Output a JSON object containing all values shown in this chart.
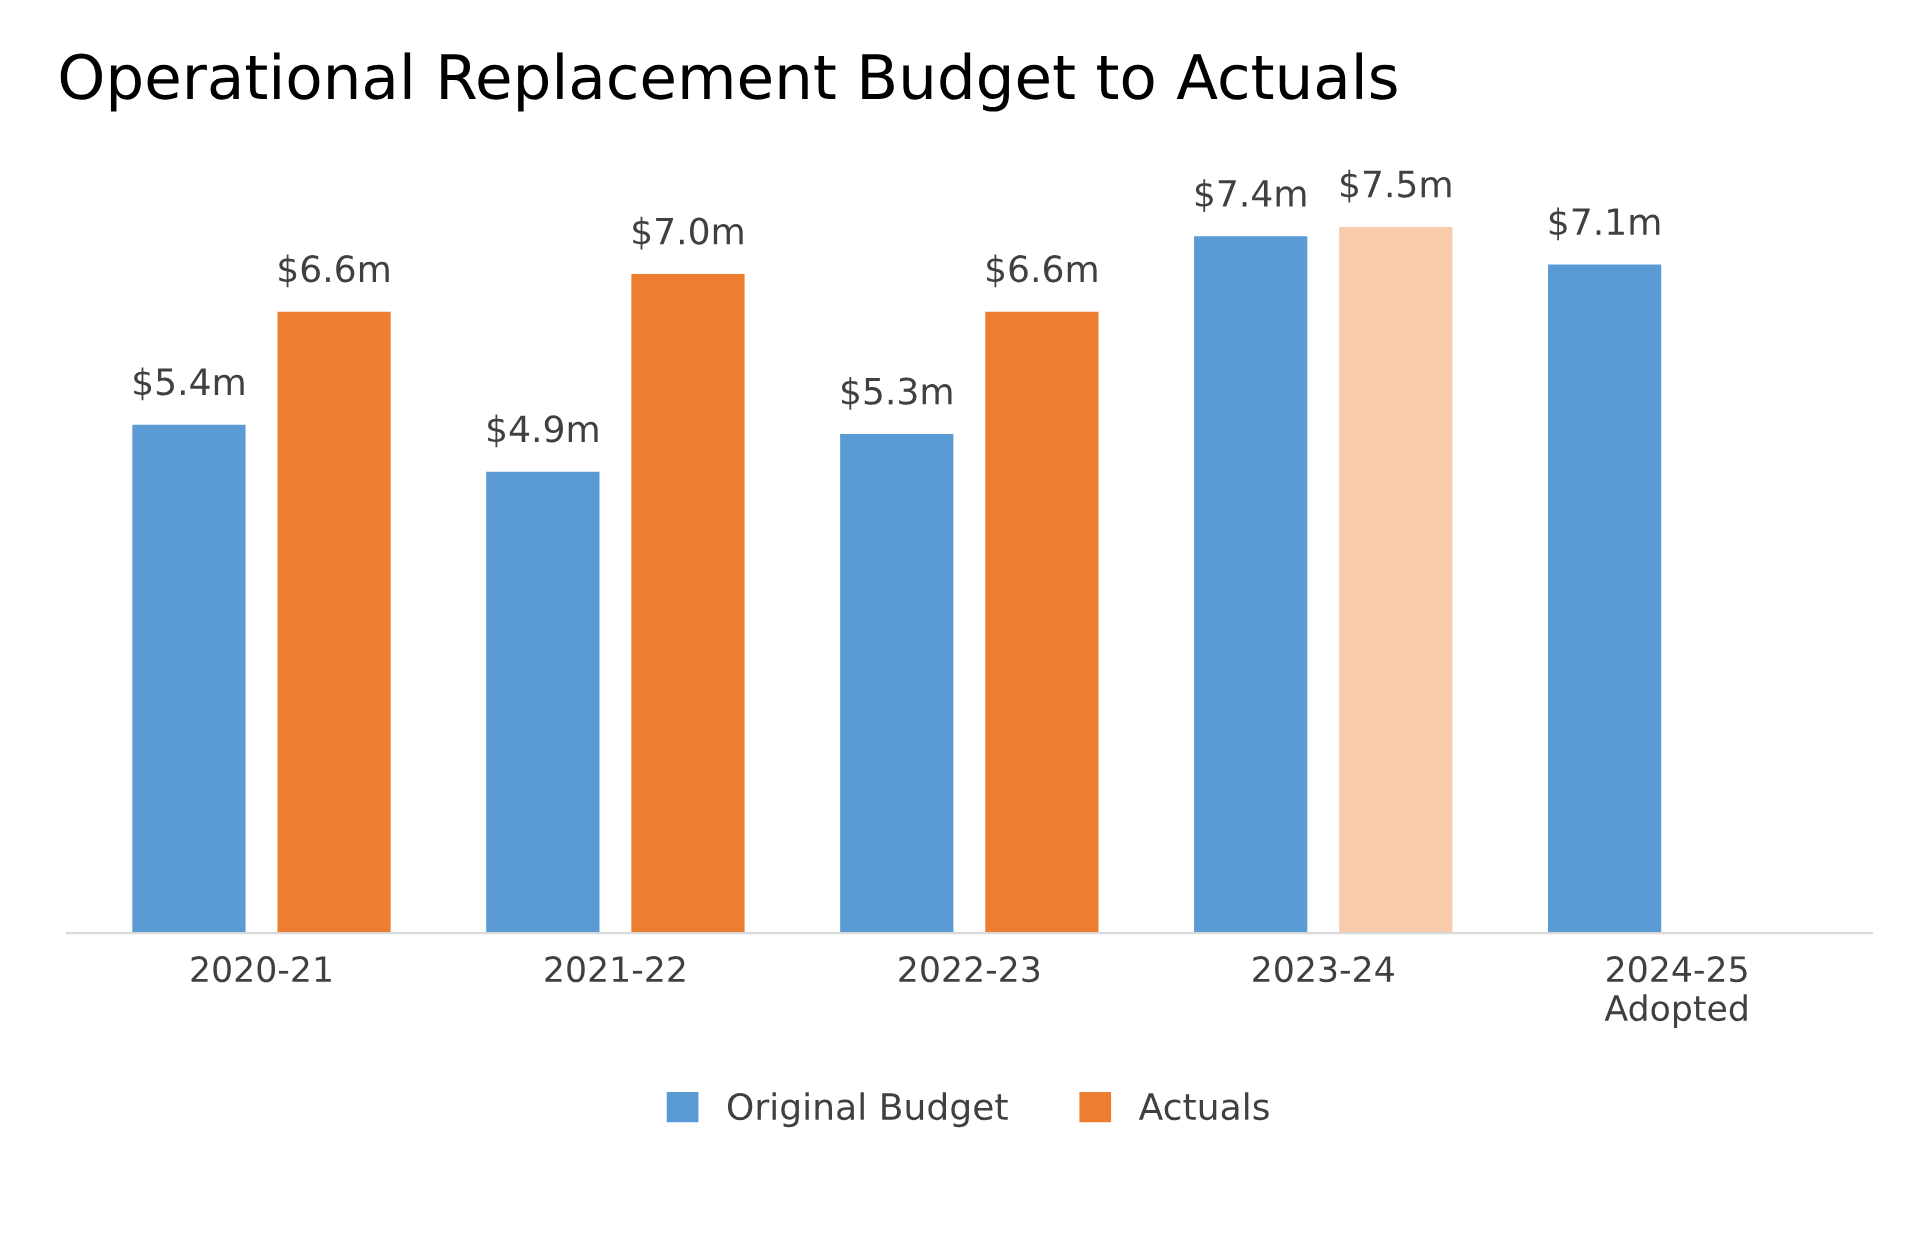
{
  "chart_data": {
    "type": "bar",
    "title": "Operational Replacement Budget to Actuals",
    "categories": [
      "2020-21",
      "2021-22",
      "2022-23",
      "2023-24",
      "2024-25\nAdopted"
    ],
    "series": [
      {
        "name": "Original Budget",
        "color": "#5b9bd5",
        "values": [
          5.4,
          4.9,
          5.3,
          7.4,
          7.1
        ],
        "value_labels": [
          "$5.4m",
          "$4.9m",
          "$5.3m",
          "$7.4m",
          "$7.1m"
        ]
      },
      {
        "name": "Actuals",
        "color": "#ed7d31",
        "colors": [
          "#ed7d31",
          "#ed7d31",
          "#ed7d31",
          "#f8cbad",
          null
        ],
        "values": [
          6.6,
          7.0,
          6.6,
          7.5,
          null
        ],
        "value_labels": [
          "$6.6m",
          "$7.0m",
          "$6.6m",
          "$7.5m",
          null
        ]
      }
    ],
    "legend": "bottom",
    "grid": false
  }
}
